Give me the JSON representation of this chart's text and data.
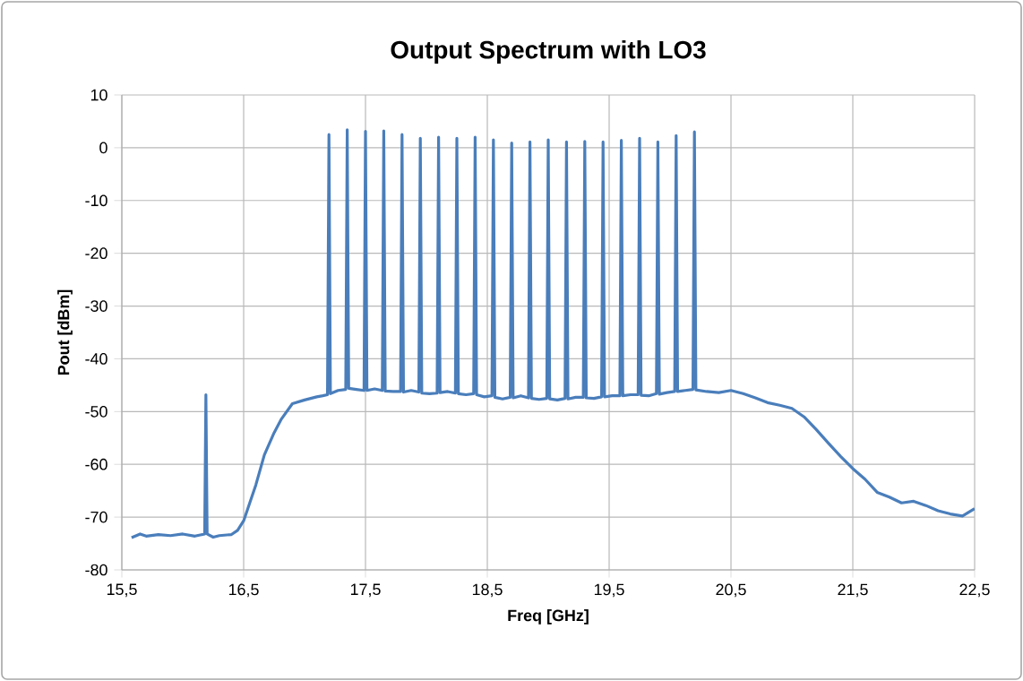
{
  "chart_data": {
    "type": "line",
    "title": "Output Spectrum with LO3",
    "xlabel": "Freq [GHz]",
    "ylabel": "Pout [dBm]",
    "xlim": [
      15.5,
      22.5
    ],
    "xticks": [
      {
        "value": 15.5,
        "label": "15,5"
      },
      {
        "value": 16.5,
        "label": "16,5"
      },
      {
        "value": 17.5,
        "label": "17,5"
      },
      {
        "value": 18.5,
        "label": "18,5"
      },
      {
        "value": 19.5,
        "label": "19,5"
      },
      {
        "value": 20.5,
        "label": "20,5"
      },
      {
        "value": 21.5,
        "label": "21,5"
      },
      {
        "value": 22.5,
        "label": "22,5"
      }
    ],
    "ylim": [
      -80,
      10
    ],
    "yticks": [
      -80,
      -70,
      -60,
      -50,
      -40,
      -30,
      -20,
      -10,
      0,
      10
    ],
    "grid": true,
    "marker": "none",
    "line_style": "solid",
    "series": [
      {
        "color": "#4a7ebb",
        "x": [
          15.58,
          15.65,
          15.7,
          15.8,
          15.9,
          16.0,
          16.1,
          16.18,
          16.19,
          16.2,
          16.25,
          16.3,
          16.4,
          16.45,
          16.5,
          16.55,
          16.6,
          16.67,
          16.75,
          16.81,
          16.9,
          17.0,
          17.1,
          17.15,
          17.188,
          17.2,
          17.212,
          17.275,
          17.338,
          17.35,
          17.362,
          17.425,
          17.488,
          17.5,
          17.512,
          17.575,
          17.638,
          17.65,
          17.662,
          17.725,
          17.788,
          17.8,
          17.812,
          17.875,
          17.938,
          17.95,
          17.962,
          18.025,
          18.088,
          18.1,
          18.112,
          18.175,
          18.238,
          18.25,
          18.262,
          18.325,
          18.388,
          18.4,
          18.412,
          18.475,
          18.538,
          18.55,
          18.562,
          18.625,
          18.688,
          18.7,
          18.712,
          18.775,
          18.838,
          18.85,
          18.862,
          18.925,
          18.988,
          19.0,
          19.012,
          19.075,
          19.138,
          19.15,
          19.162,
          19.225,
          19.288,
          19.3,
          19.312,
          19.375,
          19.438,
          19.45,
          19.462,
          19.525,
          19.588,
          19.6,
          19.612,
          19.675,
          19.738,
          19.75,
          19.762,
          19.825,
          19.888,
          19.9,
          19.912,
          19.975,
          20.038,
          20.05,
          20.062,
          20.125,
          20.188,
          20.2,
          20.212,
          20.3,
          20.4,
          20.5,
          20.6,
          20.7,
          20.8,
          20.9,
          21.0,
          21.1,
          21.2,
          21.3,
          21.4,
          21.5,
          21.6,
          21.7,
          21.8,
          21.9,
          22.0,
          22.1,
          22.2,
          22.3,
          22.4,
          22.5
        ],
        "values": [
          -73.9,
          -73.2,
          -73.6,
          -73.3,
          -73.5,
          -73.2,
          -73.6,
          -73.2,
          -46.8,
          -73.2,
          -73.8,
          -73.5,
          -73.3,
          -72.5,
          -70.7,
          -67.3,
          -63.9,
          -58.2,
          -54.0,
          -51.4,
          -48.5,
          -47.8,
          -47.2,
          -47.0,
          -46.8,
          2.5,
          -46.6,
          -46.0,
          -45.8,
          3.4,
          -45.6,
          -45.8,
          -46.0,
          3.1,
          -46.0,
          -45.7,
          -46.0,
          3.2,
          -46.1,
          -46.2,
          -46.2,
          2.5,
          -46.3,
          -46.0,
          -46.3,
          1.8,
          -46.5,
          -46.6,
          -46.5,
          2.0,
          -46.4,
          -46.2,
          -46.5,
          1.8,
          -46.6,
          -46.8,
          -46.6,
          2.0,
          -46.8,
          -47.2,
          -47.0,
          1.5,
          -47.3,
          -47.6,
          -47.3,
          0.9,
          -47.4,
          -47.0,
          -47.4,
          1.1,
          -47.5,
          -47.7,
          -47.5,
          1.5,
          -47.6,
          -47.8,
          -47.5,
          1.1,
          -47.6,
          -47.3,
          -47.3,
          1.2,
          -47.4,
          -47.5,
          -47.2,
          1.1,
          -47.2,
          -47.0,
          -47.0,
          1.4,
          -47.0,
          -46.8,
          -46.8,
          1.8,
          -46.9,
          -47.0,
          -46.6,
          1.1,
          -46.7,
          -46.4,
          -46.2,
          2.3,
          -46.2,
          -46.0,
          -45.8,
          3.0,
          -45.9,
          -46.2,
          -46.4,
          -46.0,
          -46.6,
          -47.4,
          -48.3,
          -48.8,
          -49.4,
          -51.0,
          -53.4,
          -56.0,
          -58.5,
          -60.8,
          -62.8,
          -65.3,
          -66.2,
          -67.3,
          -67.0,
          -67.8,
          -68.8,
          -69.4,
          -69.8,
          -68.4
        ]
      }
    ]
  }
}
